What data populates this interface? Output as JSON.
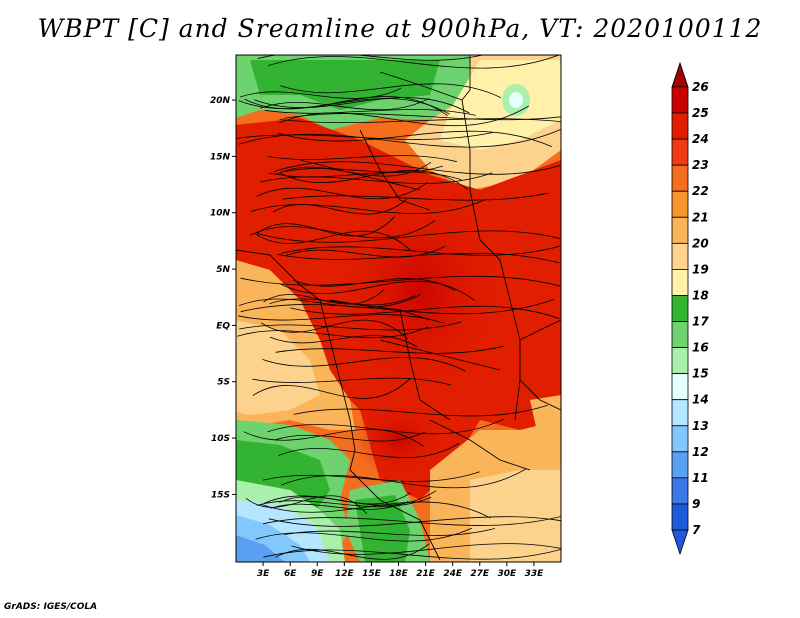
{
  "title": "WBPT [C] and Sreamline at 900hPa, VT: 2020100112",
  "credit": "GrADS: IGES/COLA",
  "map": {
    "lat_range": [
      -21,
      24
    ],
    "lon_range": [
      0,
      36
    ],
    "lat_ticks": [
      {
        "lat": 20,
        "label": "20N"
      },
      {
        "lat": 15,
        "label": "15N"
      },
      {
        "lat": 10,
        "label": "10N"
      },
      {
        "lat": 5,
        "label": "5N"
      },
      {
        "lat": 0,
        "label": "EQ"
      },
      {
        "lat": -5,
        "label": "5S"
      },
      {
        "lat": -10,
        "label": "10S"
      },
      {
        "lat": -15,
        "label": "15S"
      }
    ],
    "lon_ticks": [
      {
        "lon": 3,
        "label": "3E"
      },
      {
        "lon": 6,
        "label": "6E"
      },
      {
        "lon": 9,
        "label": "9E"
      },
      {
        "lon": 12,
        "label": "12E"
      },
      {
        "lon": 15,
        "label": "15E"
      },
      {
        "lon": 18,
        "label": "18E"
      },
      {
        "lon": 21,
        "label": "21E"
      },
      {
        "lon": 24,
        "label": "24E"
      },
      {
        "lon": 27,
        "label": "27E"
      },
      {
        "lon": 30,
        "label": "30E"
      },
      {
        "lon": 33,
        "label": "33E"
      }
    ]
  },
  "colorbar": {
    "levels": [
      {
        "label": "26",
        "color": "#a50000"
      },
      {
        "label": "25",
        "color": "#c80000"
      },
      {
        "label": "24",
        "color": "#e11e00"
      },
      {
        "label": "23",
        "color": "#f03c14"
      },
      {
        "label": "22",
        "color": "#f56e1e"
      },
      {
        "label": "21",
        "color": "#f7962d"
      },
      {
        "label": "20",
        "color": "#fab45a"
      },
      {
        "label": "19",
        "color": "#fcd28c"
      },
      {
        "label": "18",
        "color": "#fff0aa"
      },
      {
        "label": "17",
        "color": "#32b432"
      },
      {
        "label": "16",
        "color": "#6ed26e"
      },
      {
        "label": "15",
        "color": "#aaf0aa"
      },
      {
        "label": "14",
        "color": "#e6ffff"
      },
      {
        "label": "13",
        "color": "#b4e6ff"
      },
      {
        "label": "12",
        "color": "#82c8ff"
      },
      {
        "label": "11",
        "color": "#5aa0f0"
      },
      {
        "label": "9",
        "color": "#3c78e6"
      },
      {
        "label": "7",
        "color": "#1e5adc"
      }
    ],
    "low_end_color": "#1e5adc",
    "high_end_color": "#a50000"
  }
}
